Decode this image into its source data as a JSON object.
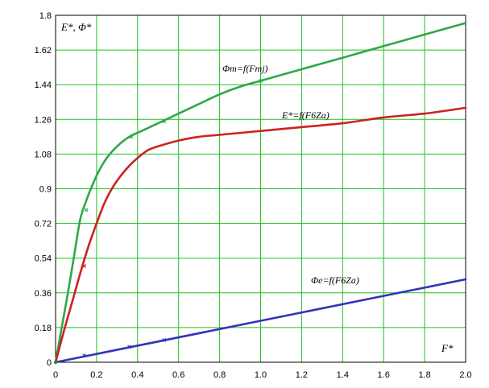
{
  "chart_data": {
    "type": "line",
    "title": "",
    "xlabel": "F*",
    "ylabel": "E*, Φ*",
    "xlim": [
      0,
      2.0
    ],
    "ylim": [
      0,
      1.8
    ],
    "grid": true,
    "x_ticks": [
      "0",
      "0.2",
      "0.4",
      "0.6",
      "0.8",
      "1.0",
      "1.2",
      "1.4",
      "1.6",
      "1.8",
      "2.0"
    ],
    "y_ticks": [
      "0",
      "0.18",
      "0.36",
      "0.54",
      "0.72",
      "0.9",
      "1.08",
      "1.26",
      "1.44",
      "1.62",
      "1.8"
    ],
    "grid_color": "#21c021",
    "series": [
      {
        "name": "Φm=f(Fmj)",
        "color": "#2ea84a",
        "x": [
          0,
          0.03,
          0.06,
          0.09,
          0.12,
          0.15,
          0.18,
          0.21,
          0.25,
          0.3,
          0.36,
          0.42,
          0.5,
          0.6,
          0.7,
          0.8,
          0.9,
          1.0,
          1.2,
          1.4,
          1.6,
          1.8,
          2.0
        ],
        "y": [
          0.0,
          0.18,
          0.36,
          0.55,
          0.74,
          0.84,
          0.92,
          0.99,
          1.06,
          1.12,
          1.17,
          1.2,
          1.24,
          1.29,
          1.34,
          1.39,
          1.43,
          1.46,
          1.52,
          1.58,
          1.64,
          1.7,
          1.76
        ],
        "markers": [
          [
            0.15,
            0.79
          ],
          [
            0.37,
            1.17
          ],
          [
            0.53,
            1.25
          ],
          [
            1.0,
            1.46
          ]
        ]
      },
      {
        "name": "E*=f(F6Za)",
        "color": "#cc2222",
        "x": [
          0,
          0.04,
          0.08,
          0.12,
          0.16,
          0.2,
          0.24,
          0.28,
          0.32,
          0.36,
          0.4,
          0.45,
          0.5,
          0.6,
          0.7,
          0.8,
          1.0,
          1.2,
          1.4,
          1.6,
          1.8,
          2.0
        ],
        "y": [
          0.0,
          0.16,
          0.31,
          0.46,
          0.6,
          0.72,
          0.83,
          0.91,
          0.97,
          1.02,
          1.06,
          1.1,
          1.12,
          1.15,
          1.17,
          1.18,
          1.2,
          1.22,
          1.24,
          1.27,
          1.29,
          1.32
        ],
        "markers": [
          [
            0.14,
            0.5
          ]
        ]
      },
      {
        "name": "Φe=f(F6Za)",
        "color": "#3333bb",
        "x": [
          0,
          2.0
        ],
        "y": [
          0.0,
          0.43
        ],
        "markers": [
          [
            0.14,
            0.035
          ],
          [
            0.36,
            0.08
          ],
          [
            0.53,
            0.115
          ]
        ]
      }
    ]
  }
}
